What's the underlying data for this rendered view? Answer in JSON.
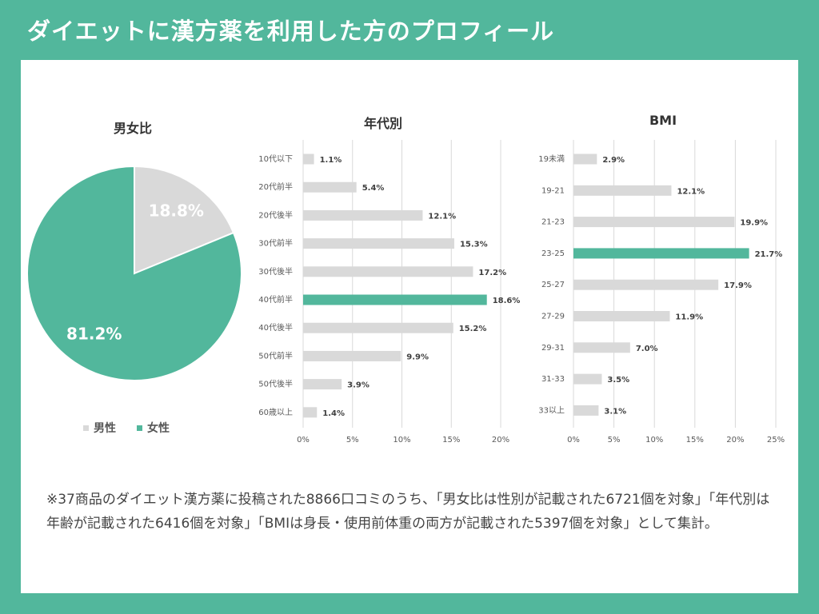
{
  "title": "ダイエットに漢方薬を利用した方のプロフィール",
  "colors": {
    "accent": "#52b79c",
    "bar": "#d9d9d9",
    "highlight": "#52b79c",
    "female": "#52b79c",
    "male": "#d9d9d9"
  },
  "chart_data": [
    {
      "type": "pie",
      "title": "男女比",
      "categories": [
        "男性",
        "女性"
      ],
      "values": [
        18.8,
        81.2
      ],
      "labels": [
        "18.8%",
        "81.2%"
      ],
      "legend": "bottom"
    },
    {
      "type": "bar",
      "orientation": "horizontal",
      "title": "年代別",
      "categories": [
        "10代以下",
        "20代前半",
        "20代後半",
        "30代前半",
        "30代後半",
        "40代前半",
        "40代後半",
        "50代前半",
        "50代後半",
        "60歳以上"
      ],
      "values": [
        1.1,
        5.4,
        12.1,
        15.3,
        17.2,
        18.6,
        15.2,
        9.9,
        3.9,
        1.4
      ],
      "labels": [
        "1.1%",
        "5.4%",
        "12.1%",
        "15.3%",
        "17.2%",
        "18.6%",
        "15.2%",
        "9.9%",
        "3.9%",
        "1.4%"
      ],
      "highlight_index": 5,
      "xlim": [
        0,
        20
      ],
      "ticks": [
        0,
        5,
        10,
        15,
        20
      ],
      "tick_labels": [
        "0%",
        "5%",
        "10%",
        "15%",
        "20%"
      ],
      "grid": true
    },
    {
      "type": "bar",
      "orientation": "horizontal",
      "title": "BMI",
      "categories": [
        "19未満",
        "19-21",
        "21-23",
        "23-25",
        "25-27",
        "27-29",
        "29-31",
        "31-33",
        "33以上"
      ],
      "values": [
        2.9,
        12.1,
        19.9,
        21.7,
        17.9,
        11.9,
        7.0,
        3.5,
        3.1
      ],
      "labels": [
        "2.9%",
        "12.1%",
        "19.9%",
        "21.7%",
        "17.9%",
        "11.9%",
        "7.0%",
        "3.5%",
        "3.1%"
      ],
      "highlight_index": 3,
      "xlim": [
        0,
        25
      ],
      "ticks": [
        0,
        5,
        10,
        15,
        20,
        25
      ],
      "tick_labels": [
        "0%",
        "5%",
        "10%",
        "15%",
        "20%",
        "25%"
      ],
      "grid": true
    }
  ],
  "note": "※37商品のダイエット漢方薬に投稿された8866口コミのうち、「男女比は性別が記載された6721個を対象」「年代別は年齢が記載された6416個を対象」「BMIは身長・使用前体重の両方が記載された5397個を対象」として集計。"
}
